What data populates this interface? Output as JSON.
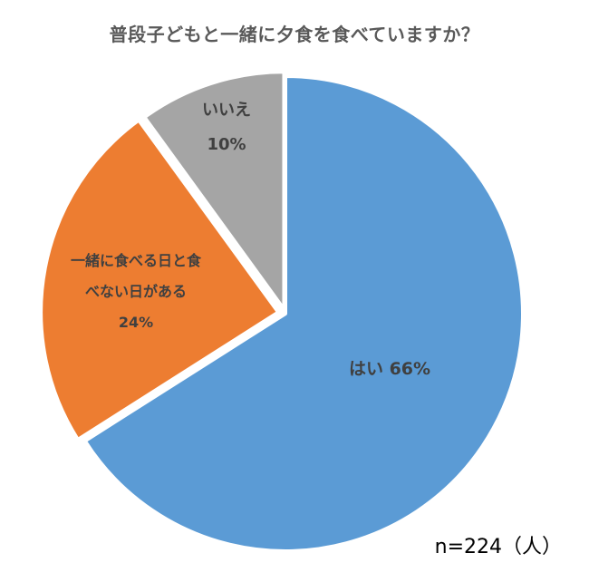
{
  "chart_data": {
    "type": "pie",
    "title": "普段子どもと一緒に夕食を食べていますか？",
    "slices": [
      {
        "label": "はい",
        "value": 66,
        "value_text": "66%",
        "color": "#5B9BD5",
        "label_lines": [
          "はい 66%"
        ]
      },
      {
        "label": "一緒に食べる日と食べない日がある",
        "value": 24,
        "value_text": "24%",
        "color": "#ED7D31",
        "label_lines": [
          "一緒に食べる日と食",
          "べない日がある",
          "24%"
        ]
      },
      {
        "label": "いいえ",
        "value": 10,
        "value_text": "10%",
        "color": "#A5A5A5",
        "label_lines": [
          "いいえ",
          "10%"
        ]
      }
    ],
    "start": "12 o'clock",
    "direction": "clockwise",
    "note": "n=224（人）",
    "legend": "none"
  }
}
